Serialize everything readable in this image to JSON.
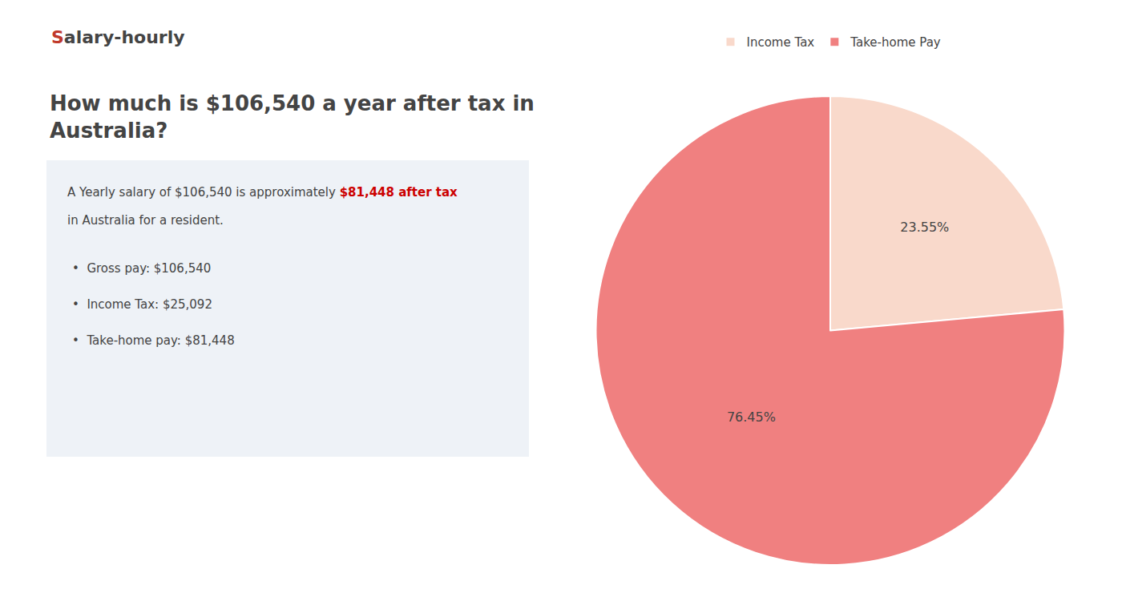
{
  "chart_data": {
    "type": "pie",
    "title": "How much is $106,540 a year after tax in\nAustralia?",
    "categories": [
      "Income Tax",
      "Take-home Pay"
    ],
    "values": [
      23.55,
      76.45
    ],
    "value_labels": [
      "23.55%",
      "76.45%"
    ],
    "colors": [
      "#f9d9cb",
      "#f08080"
    ],
    "data_labels": true,
    "legend": "top",
    "annotations": [
      {
        "text": "S",
        "color": "#c0392b"
      },
      {
        "text": "alary-hourly"
      },
      {
        "text": "A Yearly salary of $106,540 is approximately "
      },
      {
        "text": "$81,448 after tax",
        "color": "#cc0000"
      },
      {
        "text": "in Australia for a resident."
      },
      {
        "text": "•  Gross pay: $106,540"
      },
      {
        "text": "•  Income Tax: $25,092"
      },
      {
        "text": "•  Take-home pay: $81,448"
      }
    ]
  }
}
